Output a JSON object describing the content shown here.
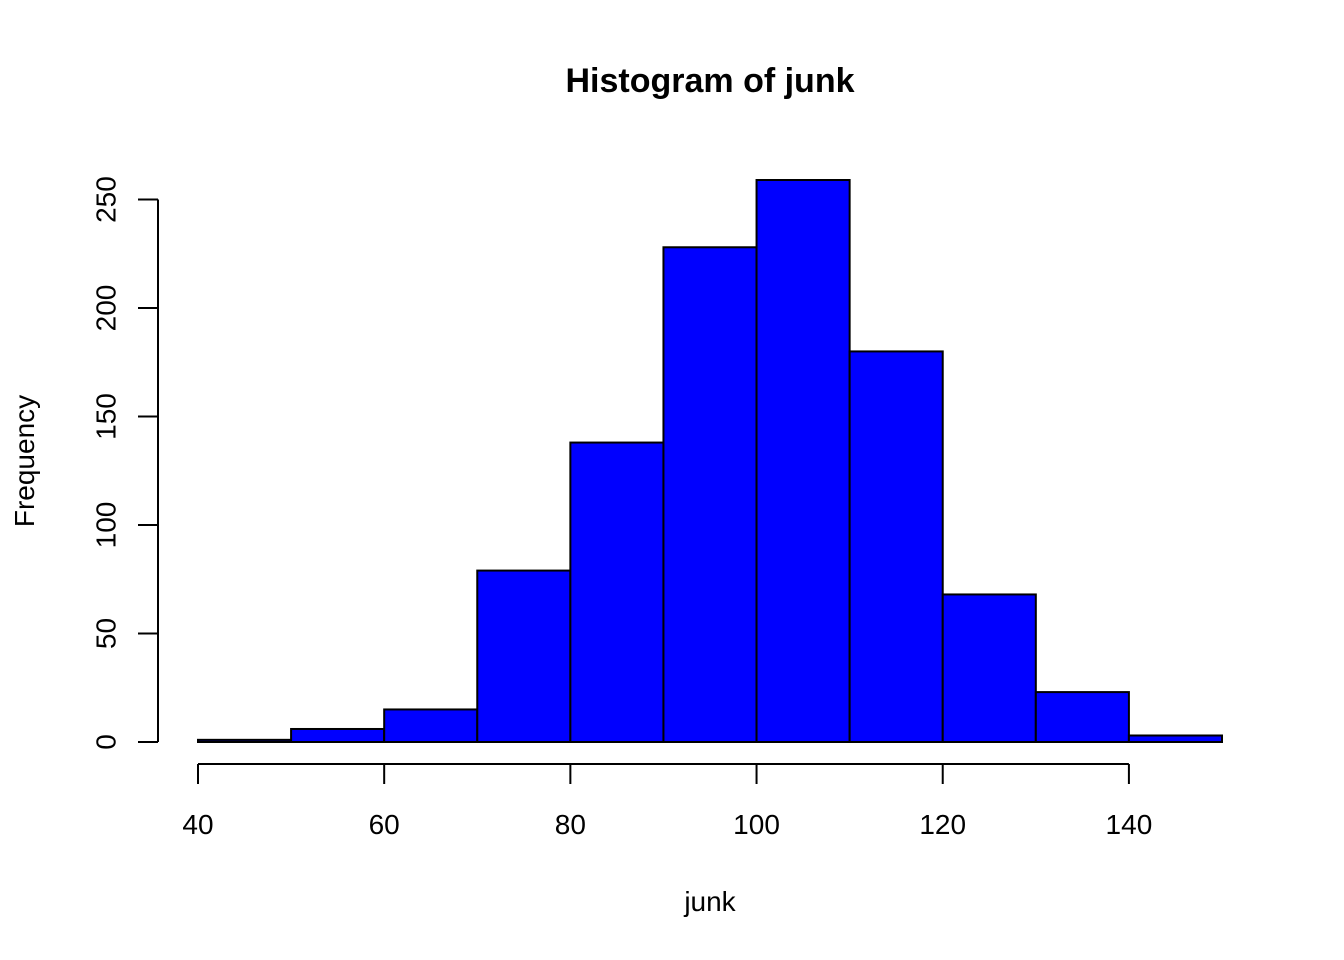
{
  "chart_data": {
    "type": "bar",
    "title": "Histogram of junk",
    "xlabel": "junk",
    "ylabel": "Frequency",
    "bins": [
      {
        "from": 40,
        "to": 50,
        "count": 1
      },
      {
        "from": 50,
        "to": 60,
        "count": 6
      },
      {
        "from": 60,
        "to": 70,
        "count": 15
      },
      {
        "from": 70,
        "to": 80,
        "count": 79
      },
      {
        "from": 80,
        "to": 90,
        "count": 138
      },
      {
        "from": 90,
        "to": 100,
        "count": 228
      },
      {
        "from": 100,
        "to": 110,
        "count": 259
      },
      {
        "from": 110,
        "to": 120,
        "count": 180
      },
      {
        "from": 120,
        "to": 130,
        "count": 68
      },
      {
        "from": 130,
        "to": 140,
        "count": 23
      },
      {
        "from": 140,
        "to": 150,
        "count": 3
      }
    ],
    "xlim": [
      40,
      150
    ],
    "ylim": [
      0,
      259
    ],
    "x_ticks": [
      40,
      60,
      80,
      100,
      120,
      140
    ],
    "x_tick_labels": [
      "40",
      "60",
      "80",
      "100",
      "120",
      "140"
    ],
    "y_ticks": [
      0,
      50,
      100,
      150,
      200,
      250
    ],
    "y_tick_labels": [
      "0",
      "50",
      "100",
      "150",
      "200",
      "250"
    ],
    "grid": false,
    "legend": "none",
    "bar_color": "#0000ff",
    "edge_color": "#000000"
  }
}
